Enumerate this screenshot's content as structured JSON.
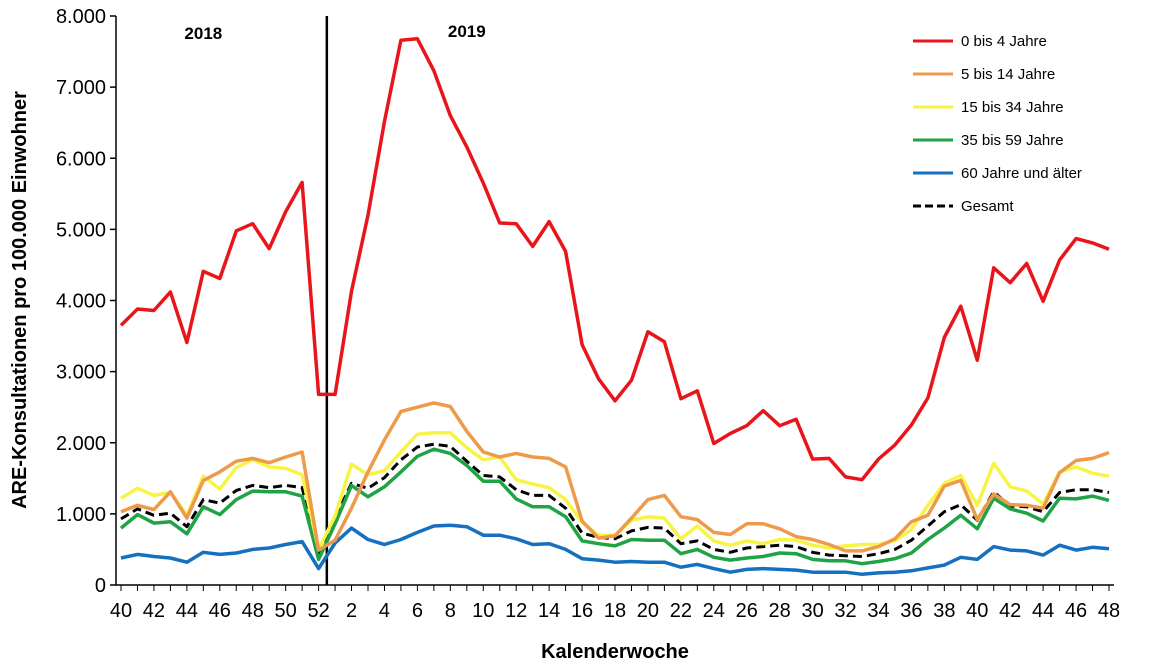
{
  "chart_data": {
    "type": "line",
    "xlabel": "Kalenderwoche",
    "ylabel": "ARE-Konsultationen pro 100.000 Einwohner",
    "ylim": [
      0,
      8000
    ],
    "y_ticks": [
      "0",
      "1.000",
      "2.000",
      "3.000",
      "4.000",
      "5.000",
      "6.000",
      "7.000",
      "8.000"
    ],
    "x_tick_labels": [
      "40",
      "42",
      "44",
      "46",
      "48",
      "50",
      "52",
      "2",
      "4",
      "6",
      "8",
      "10",
      "12",
      "14",
      "16",
      "18",
      "20",
      "22",
      "24",
      "26",
      "28",
      "30",
      "32",
      "34",
      "36",
      "38",
      "40",
      "42",
      "44",
      "46",
      "48"
    ],
    "x": [
      "40",
      "41",
      "42",
      "43",
      "44",
      "45",
      "46",
      "47",
      "48",
      "49",
      "50",
      "51",
      "52",
      "1",
      "2",
      "3",
      "4",
      "5",
      "6",
      "7",
      "8",
      "9",
      "10",
      "11",
      "12",
      "13",
      "14",
      "15",
      "16",
      "17",
      "18",
      "19",
      "20",
      "21",
      "22",
      "23",
      "24",
      "25",
      "26",
      "27",
      "28",
      "29",
      "30",
      "31",
      "32",
      "33",
      "34",
      "35",
      "36",
      "37",
      "38",
      "39",
      "40",
      "41",
      "42",
      "43",
      "44",
      "45",
      "46",
      "47",
      "48"
    ],
    "year_labels": [
      "2018",
      "2019"
    ],
    "year_divider_between": [
      "52",
      "1"
    ],
    "grid": false,
    "legend_position": "top-right",
    "series": [
      {
        "name": "0 bis 4 Jahre",
        "color": "#e8161b",
        "dashed": false,
        "values": [
          3650,
          3880,
          3860,
          4120,
          3410,
          4410,
          4310,
          4980,
          5080,
          4730,
          5250,
          5660,
          2680,
          2680,
          4130,
          5200,
          6520,
          7660,
          7680,
          7230,
          6600,
          6160,
          5650,
          5090,
          5080,
          4760,
          5110,
          4690,
          3380,
          2900,
          2590,
          2880,
          3560,
          3420,
          2620,
          2730,
          1990,
          2130,
          2240,
          2450,
          2240,
          2330,
          1770,
          1780,
          1520,
          1480,
          1770,
          1970,
          2250,
          2630,
          3480,
          3920,
          3160,
          4460,
          4250,
          4520,
          3990,
          4570,
          4870,
          4810,
          4720
        ]
      },
      {
        "name": "5 bis 14 Jahre",
        "color": "#ed9b4b",
        "dashed": false,
        "values": [
          1030,
          1120,
          1060,
          1310,
          940,
          1470,
          1590,
          1740,
          1780,
          1720,
          1800,
          1870,
          490,
          630,
          1080,
          1590,
          2040,
          2440,
          2500,
          2560,
          2510,
          2160,
          1870,
          1800,
          1850,
          1800,
          1780,
          1660,
          900,
          660,
          690,
          940,
          1200,
          1260,
          960,
          920,
          740,
          710,
          860,
          860,
          790,
          680,
          640,
          570,
          480,
          480,
          540,
          650,
          890,
          980,
          1390,
          1470,
          920,
          1280,
          1130,
          1120,
          1080,
          1580,
          1750,
          1780,
          1860
        ]
      },
      {
        "name": "15 bis 34 Jahre",
        "color": "#f8f445",
        "dashed": false,
        "values": [
          1220,
          1360,
          1260,
          1300,
          980,
          1530,
          1350,
          1650,
          1760,
          1660,
          1640,
          1550,
          500,
          970,
          1700,
          1550,
          1610,
          1870,
          2120,
          2140,
          2140,
          1930,
          1760,
          1800,
          1480,
          1420,
          1370,
          1200,
          880,
          700,
          700,
          910,
          960,
          940,
          650,
          830,
          620,
          560,
          620,
          580,
          640,
          630,
          560,
          520,
          550,
          570,
          570,
          620,
          780,
          1120,
          1430,
          1540,
          1120,
          1710,
          1380,
          1320,
          1140,
          1590,
          1660,
          1570,
          1530
        ]
      },
      {
        "name": "35 bis 59 Jahre",
        "color": "#1fa345",
        "dashed": false,
        "values": [
          800,
          990,
          870,
          890,
          720,
          1100,
          990,
          1200,
          1320,
          1310,
          1310,
          1250,
          360,
          860,
          1400,
          1240,
          1380,
          1590,
          1810,
          1910,
          1850,
          1680,
          1460,
          1460,
          1210,
          1100,
          1100,
          960,
          620,
          580,
          550,
          640,
          630,
          630,
          440,
          500,
          390,
          350,
          380,
          400,
          450,
          440,
          360,
          340,
          340,
          300,
          330,
          370,
          450,
          640,
          800,
          980,
          790,
          1220,
          1070,
          1010,
          900,
          1220,
          1210,
          1250,
          1190
        ]
      },
      {
        "name": "60 Jahre und älter",
        "color": "#1570c0",
        "dashed": false,
        "values": [
          380,
          430,
          400,
          380,
          320,
          460,
          430,
          450,
          500,
          520,
          570,
          610,
          230,
          590,
          800,
          640,
          570,
          640,
          740,
          830,
          840,
          820,
          700,
          700,
          650,
          570,
          580,
          500,
          370,
          350,
          320,
          330,
          320,
          320,
          250,
          290,
          230,
          180,
          220,
          230,
          220,
          210,
          180,
          180,
          180,
          150,
          170,
          180,
          200,
          240,
          280,
          390,
          360,
          540,
          490,
          480,
          420,
          560,
          490,
          530,
          510
        ]
      },
      {
        "name": "Gesamt",
        "color": "#000000",
        "dashed": true,
        "values": [
          930,
          1070,
          980,
          1010,
          820,
          1200,
          1150,
          1330,
          1400,
          1370,
          1400,
          1370,
          430,
          940,
          1430,
          1360,
          1510,
          1760,
          1940,
          1980,
          1950,
          1740,
          1540,
          1520,
          1340,
          1260,
          1260,
          1080,
          730,
          670,
          650,
          760,
          810,
          800,
          580,
          620,
          500,
          460,
          520,
          540,
          560,
          540,
          460,
          420,
          410,
          400,
          440,
          500,
          630,
          830,
          1030,
          1130,
          910,
          1310,
          1110,
          1100,
          1030,
          1300,
          1340,
          1340,
          1300
        ]
      }
    ]
  }
}
